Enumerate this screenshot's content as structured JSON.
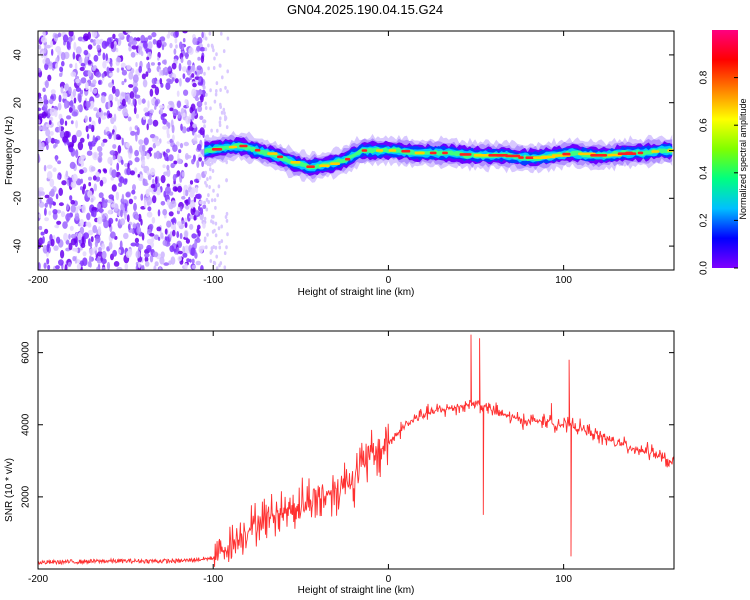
{
  "figure": {
    "title": "GN04.2025.190.04.15.G24"
  },
  "chart_data": [
    {
      "type": "heatmap",
      "xlabel": "Height of straight line (km)",
      "ylabel": "Frequency (Hz)",
      "xlim": [
        -200,
        163
      ],
      "ylim": [
        -50,
        50
      ],
      "xticks": [
        -200,
        -100,
        0,
        100
      ],
      "yticks": [
        -40,
        -20,
        0,
        20,
        40
      ],
      "colorbar": {
        "label": "Normalized spectral amplitude",
        "range": [
          0,
          1
        ],
        "ticks": [
          0.0,
          0.2,
          0.4,
          0.6,
          0.8
        ],
        "colormap": [
          "#8000ff",
          "#0000ff",
          "#00c0ff",
          "#00ff80",
          "#80ff00",
          "#ffff00",
          "#ff8000",
          "#ff0000",
          "#ff0080"
        ]
      },
      "ridge": {
        "x": [
          -105,
          -95,
          -85,
          -75,
          -65,
          -55,
          -45,
          -35,
          -25,
          -15,
          -5,
          5,
          15,
          25,
          35,
          45,
          55,
          65,
          75,
          85,
          95,
          105,
          115,
          125,
          135,
          145,
          155,
          163
        ],
        "y": [
          0,
          1,
          2,
          0,
          -2,
          -5,
          -7,
          -6,
          -4,
          0,
          0,
          0,
          -1,
          -1,
          -1,
          -2,
          -2,
          -2,
          -3,
          -3,
          -2,
          -1,
          -2,
          -2,
          -1,
          -1,
          0,
          0
        ]
      },
      "noise_region": [
        -200,
        -105
      ],
      "grid": false
    },
    {
      "type": "line",
      "xlabel": "Height of straight line (km)",
      "ylabel": "SNR (10 * v/v)",
      "xlim": [
        -200,
        163
      ],
      "ylim": [
        0,
        6600
      ],
      "xticks": [
        -200,
        -100,
        0,
        100
      ],
      "yticks": [
        2000,
        4000,
        6000
      ],
      "color": "#ff3030",
      "x": [
        -200,
        -160,
        -120,
        -100,
        -90,
        -80,
        -70,
        -60,
        -50,
        -40,
        -30,
        -20,
        -10,
        0,
        10,
        20,
        30,
        40,
        50,
        60,
        70,
        80,
        90,
        100,
        110,
        120,
        130,
        140,
        150,
        163
      ],
      "y": [
        180,
        220,
        220,
        300,
        700,
        1100,
        1400,
        1600,
        1800,
        1950,
        2200,
        2600,
        3100,
        3500,
        4000,
        4300,
        4400,
        4500,
        4600,
        4400,
        4200,
        4100,
        4100,
        4000,
        3900,
        3700,
        3500,
        3350,
        3250,
        2900
      ],
      "spikes": [
        {
          "x": 47,
          "y": 6500
        },
        {
          "x": 52,
          "y": 6400
        },
        {
          "x": 54,
          "y": 1500
        },
        {
          "x": 93,
          "y": 4600
        },
        {
          "x": 103,
          "y": 5800
        },
        {
          "x": 104,
          "y": 350
        }
      ],
      "grid": false
    }
  ]
}
